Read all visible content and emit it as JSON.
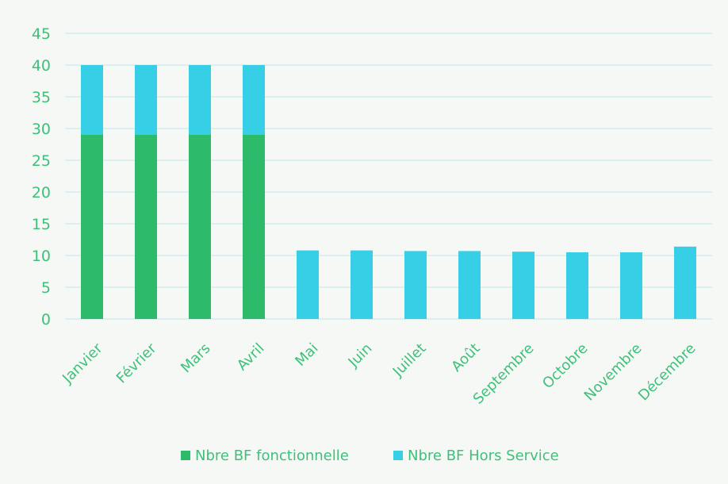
{
  "chart_data": {
    "type": "bar",
    "stacked": true,
    "title": "",
    "xlabel": "",
    "ylabel": "",
    "ylim": [
      0,
      45
    ],
    "yticks": [
      0,
      5,
      10,
      15,
      20,
      25,
      30,
      35,
      40,
      45
    ],
    "grid": true,
    "legend_position": "bottom",
    "categories": [
      "Janvier",
      "Février",
      "Mars",
      "Avril",
      "Mai",
      "Juin",
      "Juillet",
      "Août",
      "Septembre",
      "Octobre",
      "Novembre",
      "Décembre"
    ],
    "series": [
      {
        "name": "Nbre BF fonctionnelle",
        "color": "#2dbb6b",
        "values": [
          29,
          29,
          29,
          29,
          0,
          0,
          0,
          0,
          0,
          0,
          0,
          0
        ]
      },
      {
        "name": "Nbre BF Hors Service",
        "color": "#36cfe6",
        "values": [
          11,
          11,
          11,
          11,
          10.8,
          10.8,
          10.7,
          10.7,
          10.6,
          10.5,
          10.5,
          11.4
        ]
      }
    ]
  }
}
